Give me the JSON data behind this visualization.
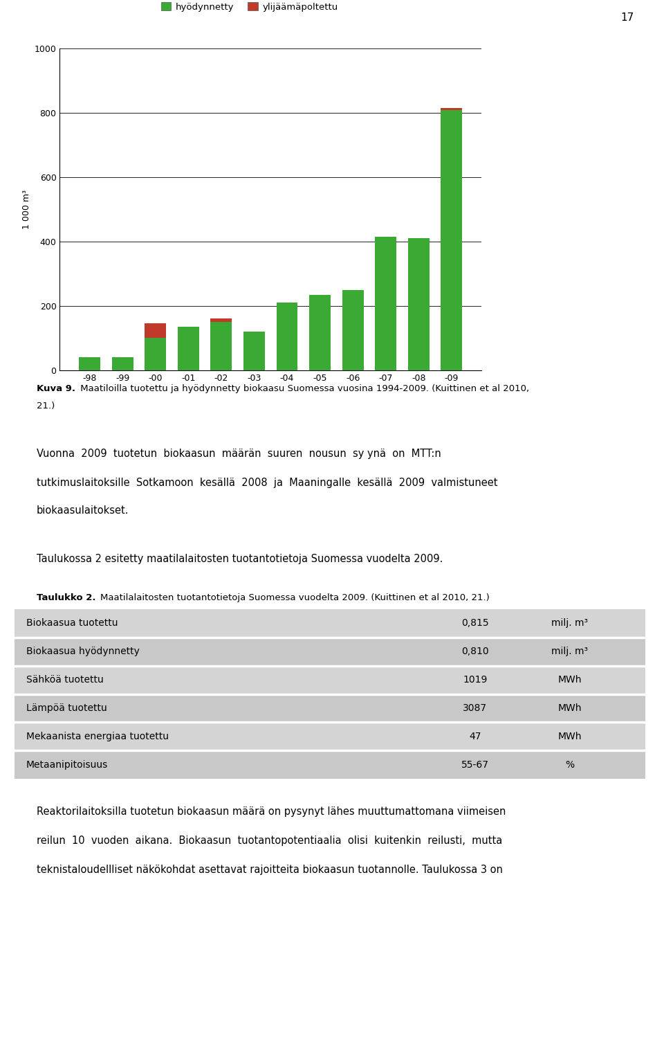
{
  "page_number": "17",
  "chart": {
    "categories": [
      "-98",
      "-99",
      "-00",
      "-01",
      "-02",
      "-03",
      "-04",
      "-05",
      "-06",
      "-07",
      "-08",
      "-09"
    ],
    "hyodynnetty": [
      40,
      40,
      100,
      135,
      150,
      120,
      210,
      235,
      250,
      415,
      410,
      810
    ],
    "ylijaamapoltettu": [
      0,
      0,
      45,
      0,
      10,
      0,
      0,
      0,
      0,
      0,
      0,
      5
    ],
    "green_color": "#3aaa35",
    "red_color": "#c0392b",
    "ylabel": "1 000 m³",
    "ylim": [
      0,
      1000
    ],
    "yticks": [
      0,
      200,
      400,
      600,
      800,
      1000
    ],
    "legend_hyodynnetty": "hyödynnetty",
    "legend_ylijaamapoltettu": "ylijäämäpoltettu"
  },
  "caption_bold": "Kuva 9.",
  "caption_normal": " Maatiloilla tuotettu ja hyödynnetty biokaasu Suomessa vuosina 1994-2009. (Kuittinen et al 2010,",
  "caption_line2": "21.)",
  "paragraph1_line1": "Vuonna  2009  tuotetun  biokaasun  määrän  suuren  nousun  sy ynä  on  MTT:n",
  "paragraph1_line2": "tutkimuslaitoksille  Sotkamoon  kesällä  2008  ja  Maaningalle  kesällä  2009  valmistuneet",
  "paragraph1_line3": "biokaasulaitokset.",
  "paragraph2": "Taulukossa 2 esitetty maatilalaitosten tuotantotietoja Suomessa vuodelta 2009.",
  "table_title_bold": "Taulukko 2.",
  "table_title_normal": "Maatilalaitosten tuotantotietoja Suomessa vuodelta 2009. (Kuittinen et al 2010, 21.)",
  "table_rows": [
    {
      "label": "Biokaasua tuotettu",
      "value": "0,815",
      "unit": "milj. m³"
    },
    {
      "label": "Biokaasua hyödynnetty",
      "value": "0,810",
      "unit": "milj. m³"
    },
    {
      "label": "Sähköä tuotettu",
      "value": "1019",
      "unit": "MWh"
    },
    {
      "label": "Lämpöä tuotettu",
      "value": "3087",
      "unit": "MWh"
    },
    {
      "label": "Mekaanista energiaa tuotettu",
      "value": "47",
      "unit": "MWh"
    },
    {
      "label": "Metaanipitoisuus",
      "value": "55-67",
      "unit": "%"
    }
  ],
  "table_bg_odd": "#c8c8c8",
  "table_bg_even": "#d4d4d4",
  "paragraph3_line1": "Reaktorilaitoksilla tuotetun biokaasun määrä on pysynyt lähes muuttumattomana viimeisen",
  "paragraph3_line2": "reilun  10  vuoden  aikana.  Biokaasun  tuotantopotentiaalia  olisi  kuitenkin  reilusti,  mutta",
  "paragraph3_line3": "teknistaloudellliset näkökohdat asettavat rajoitteita biokaasun tuotannolle. Taulukossa 3 on",
  "bg_color": "#ffffff"
}
